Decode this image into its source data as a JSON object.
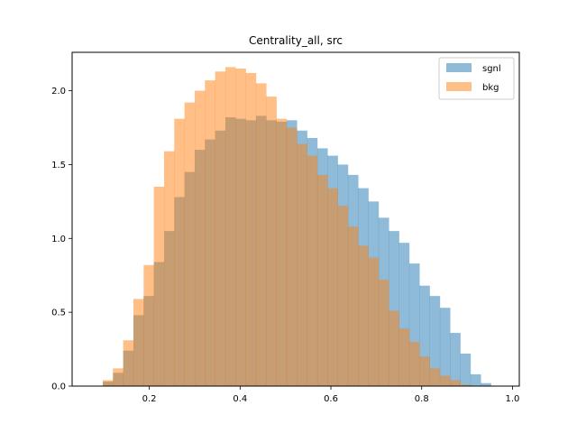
{
  "chart_data": {
    "type": "histogram",
    "title": "Centrality_all, src",
    "xlabel": "",
    "ylabel": "",
    "xlim": [
      0.03,
      1.015
    ],
    "ylim": [
      0,
      2.26
    ],
    "xticks": [
      0.2,
      0.4,
      0.6,
      0.8,
      1.0
    ],
    "xtick_labels": [
      "0.2",
      "0.4",
      "0.6",
      "0.8",
      "1.0"
    ],
    "yticks": [
      0.0,
      0.5,
      1.0,
      1.5,
      2.0
    ],
    "ytick_labels": [
      "0.0",
      "0.5",
      "1.0",
      "1.5",
      "2.0"
    ],
    "grid": false,
    "legend_position": "top-right",
    "bin_start": 0.075,
    "bin_width": 0.0225,
    "series": [
      {
        "name": "sgnl",
        "color": "#1f77b4",
        "alpha": 0.5,
        "values": [
          0.0,
          0.03,
          0.09,
          0.24,
          0.48,
          0.61,
          0.84,
          1.05,
          1.28,
          1.45,
          1.6,
          1.67,
          1.73,
          1.82,
          1.81,
          1.8,
          1.83,
          1.8,
          1.79,
          1.8,
          1.73,
          1.68,
          1.61,
          1.56,
          1.5,
          1.43,
          1.34,
          1.25,
          1.14,
          1.05,
          0.97,
          0.83,
          0.68,
          0.61,
          0.53,
          0.36,
          0.22,
          0.08,
          0.02
        ]
      },
      {
        "name": "bkg",
        "color": "#ff7f0e",
        "alpha": 0.5,
        "values": [
          0.0,
          0.04,
          0.12,
          0.31,
          0.59,
          0.82,
          1.35,
          1.59,
          1.81,
          1.92,
          2.0,
          2.07,
          2.13,
          2.16,
          2.15,
          2.12,
          2.05,
          1.96,
          1.81,
          1.75,
          1.64,
          1.56,
          1.43,
          1.34,
          1.22,
          1.08,
          0.95,
          0.87,
          0.72,
          0.51,
          0.39,
          0.3,
          0.2,
          0.12,
          0.07,
          0.04,
          0.01,
          0.0,
          0.0
        ]
      }
    ]
  }
}
